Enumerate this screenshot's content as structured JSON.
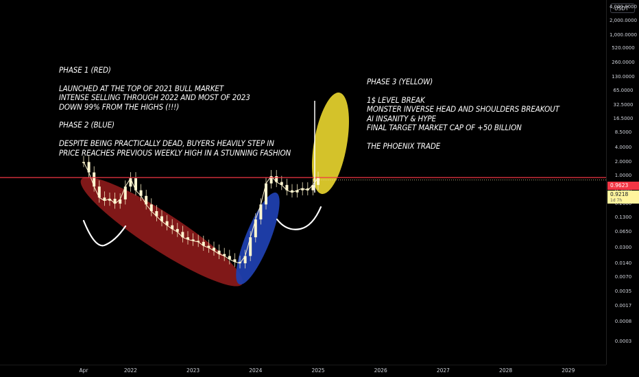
{
  "chart_data": {
    "type": "line",
    "title": "",
    "currency": "USDT",
    "y_scale": "log",
    "y_ticks": [
      "4,000.0000",
      "2,000.0000",
      "1,000.0000",
      "520.0000",
      "260.0000",
      "130.0000",
      "65.0000",
      "32.5000",
      "16.5000",
      "8.5000",
      "4.0000",
      "2.0000",
      "1.0000",
      "0.5000",
      "0.2600",
      "0.1300",
      "0.0650",
      "0.0300",
      "0.0140",
      "0.0070",
      "0.0035",
      "0.0017",
      "0.0008",
      "0.0003"
    ],
    "x_ticks": [
      "Apr",
      "2022",
      "2023",
      "2024",
      "2025",
      "2026",
      "2027",
      "2028",
      "2029"
    ],
    "ylim": [
      0.0003,
      4000
    ],
    "horizontal_line": 1.0,
    "last_price": "0.9623",
    "current_price": "0.9218",
    "countdown": "1d 7h",
    "series": [
      {
        "values": [
          {
            "x": "2021-04",
            "y": 2.0
          },
          {
            "x": "2021-05",
            "y": 1.2
          },
          {
            "x": "2021-06",
            "y": 0.6
          },
          {
            "x": "2021-07",
            "y": 0.35
          },
          {
            "x": "2021-08",
            "y": 0.3
          },
          {
            "x": "2021-09",
            "y": 0.33
          },
          {
            "x": "2021-10",
            "y": 0.26
          },
          {
            "x": "2021-11",
            "y": 0.32
          },
          {
            "x": "2021-12",
            "y": 0.6
          },
          {
            "x": "2022-01",
            "y": 0.9
          },
          {
            "x": "2022-02",
            "y": 0.5
          },
          {
            "x": "2022-03",
            "y": 0.38
          },
          {
            "x": "2022-04",
            "y": 0.25
          },
          {
            "x": "2022-05",
            "y": 0.18
          },
          {
            "x": "2022-06",
            "y": 0.14
          },
          {
            "x": "2022-07",
            "y": 0.11
          },
          {
            "x": "2022-08",
            "y": 0.09
          },
          {
            "x": "2022-09",
            "y": 0.075
          },
          {
            "x": "2022-10",
            "y": 0.065
          },
          {
            "x": "2022-11",
            "y": 0.05
          },
          {
            "x": "2022-12",
            "y": 0.045
          },
          {
            "x": "2023-01",
            "y": 0.042
          },
          {
            "x": "2023-02",
            "y": 0.04
          },
          {
            "x": "2023-03",
            "y": 0.033
          },
          {
            "x": "2023-04",
            "y": 0.03
          },
          {
            "x": "2023-05",
            "y": 0.026
          },
          {
            "x": "2023-06",
            "y": 0.022
          },
          {
            "x": "2023-07",
            "y": 0.02
          },
          {
            "x": "2023-08",
            "y": 0.017
          },
          {
            "x": "2023-09",
            "y": 0.015
          },
          {
            "x": "2023-10",
            "y": 0.014
          },
          {
            "x": "2023-11",
            "y": 0.02
          },
          {
            "x": "2023-12",
            "y": 0.05
          },
          {
            "x": "2024-01",
            "y": 0.12
          },
          {
            "x": "2024-02",
            "y": 0.25
          },
          {
            "x": "2024-03",
            "y": 0.7
          },
          {
            "x": "2024-04",
            "y": 1.0
          },
          {
            "x": "2024-05",
            "y": 0.75
          },
          {
            "x": "2024-06",
            "y": 0.65
          },
          {
            "x": "2024-07",
            "y": 0.5
          },
          {
            "x": "2024-08",
            "y": 0.45
          },
          {
            "x": "2024-09",
            "y": 0.5
          },
          {
            "x": "2024-10",
            "y": 0.55
          },
          {
            "x": "2024-11",
            "y": 0.5
          },
          {
            "x": "2024-12",
            "y": 0.65
          },
          {
            "x": "2025-01",
            "y": 0.9218
          }
        ]
      }
    ],
    "annotations": {
      "phase1_2_text": "PHASE 1 (RED)\n\nLAUNCHED AT THE TOP OF 2021 BULL MARKET\nINTENSE SELLING THROUGH 2022 AND MOST OF 2023\nDOWN 99% FROM THE HIGHS (!!!)\n\nPHASE 2 (BLUE)\n\nDESPITE BEING PRACTICALLY DEAD, BUYERS HEAVILY STEP IN\nPRICE REACHES PREVIOUS WEEKLY HIGH IN A STUNNING FASHION",
      "phase3_text": "PHASE 3 (YELLOW)\n\n1$ LEVEL BREAK\nMONSTER INVERSE HEAD AND SHOULDERS BREAKOUT\nAI INSANITY & HYPE\nFINAL TARGET MARKET CAP OF +50 BILLION\n\nTHE PHOENIX TRADE",
      "colors": {
        "phase1": "#8b1a1a",
        "phase2": "#1f3fae",
        "phase3": "#d4c22a",
        "level_line": "#f23645",
        "price_line": "#f5e6a8"
      }
    }
  }
}
